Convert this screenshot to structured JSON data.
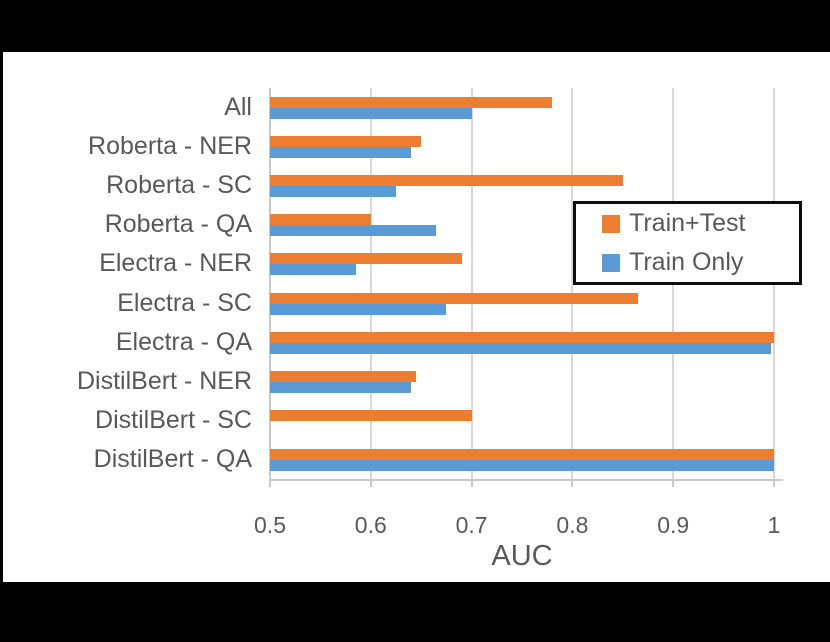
{
  "frame": {
    "background_color": "#000000",
    "chart_background_color": "#ffffff"
  },
  "chart_data": {
    "type": "bar",
    "orientation": "horizontal",
    "title": "",
    "xlabel": "AUC",
    "ylabel": "",
    "xlim": [
      0.5,
      1.0
    ],
    "xticks": [
      0.5,
      0.6,
      0.7,
      0.8,
      0.9,
      1
    ],
    "xtick_labels": [
      "0.5",
      "0.6",
      "0.7",
      "0.8",
      "0.9",
      "1"
    ],
    "grid": "vertical",
    "legend_position": "inside-right",
    "categories": [
      "All",
      "Roberta - NER",
      "Roberta - SC",
      "Roberta - QA",
      "Electra - NER",
      "Electra - SC",
      "Electra - QA",
      "DistilBert - NER",
      "DistilBert - SC",
      "DistilBert - QA"
    ],
    "series": [
      {
        "name": "Train+Test",
        "color": "#ED7D31",
        "values": [
          0.78,
          0.65,
          0.85,
          0.6,
          0.69,
          0.865,
          1.0,
          0.645,
          0.7,
          1.0
        ]
      },
      {
        "name": "Train Only",
        "color": "#5B9BD5",
        "values": [
          0.7,
          0.64,
          0.625,
          0.665,
          0.585,
          0.675,
          0.997,
          0.64,
          null,
          1.0
        ]
      }
    ],
    "colors": {
      "text": "#595959",
      "gridline": "#D9D9D9",
      "axis_line": "#C9C9C9",
      "legend_border": "#0d0d0d"
    }
  }
}
